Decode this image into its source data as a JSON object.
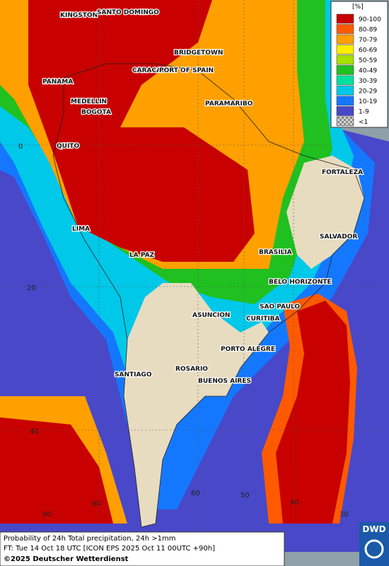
{
  "legend": {
    "title": "[%]",
    "items": [
      {
        "label": "90-100",
        "color": "#c80000"
      },
      {
        "label": "80-89",
        "color": "#ff5a00"
      },
      {
        "label": "70-79",
        "color": "#ffa000"
      },
      {
        "label": "60-69",
        "color": "#ffee00"
      },
      {
        "label": "50-59",
        "color": "#a8e000"
      },
      {
        "label": "40-49",
        "color": "#20c020"
      },
      {
        "label": "30-39",
        "color": "#00e0a0"
      },
      {
        "label": "20-29",
        "color": "#00c8e8"
      },
      {
        "label": "10-19",
        "color": "#1478ff"
      },
      {
        "label": "1-9",
        "color": "#4848c8"
      },
      {
        "label": "<1",
        "color": "#b0b0b0"
      }
    ]
  },
  "cities": [
    "KINGSTON",
    "SANTO DOMINGO",
    "BRIDGETOWN",
    "CARACAS",
    "PORT OF SPAIN",
    "PANAMA",
    "MEDELLIN",
    "BOGOTA",
    "PARAMARIBO",
    "QUITO",
    "FORTALEZA",
    "LIMA",
    "SALVADOR",
    "BRASILIA",
    "LA PAZ",
    "BELO HORIZONTE",
    "SAO PAULO",
    "ASUNCION",
    "CURITIBA",
    "PORTO ALEGRE",
    "SANTIAGO",
    "ROSARIO",
    "BUENOS AIRES"
  ],
  "grid_labels": {
    "latitudes": [
      "0",
      "20",
      "40"
    ],
    "longitudes": [
      "90",
      "80",
      "60",
      "50",
      "40",
      "30"
    ]
  },
  "footer": {
    "line1": "Probability of 24h Total precipitation, 24h >1mm",
    "line2": "FT: Tue 14 Oct 18 UTC [ICON EPS 2025 Oct 11 00UTC +90h]",
    "line3": "©2025 Deutscher Wetterdienst"
  },
  "logo": "DWD"
}
